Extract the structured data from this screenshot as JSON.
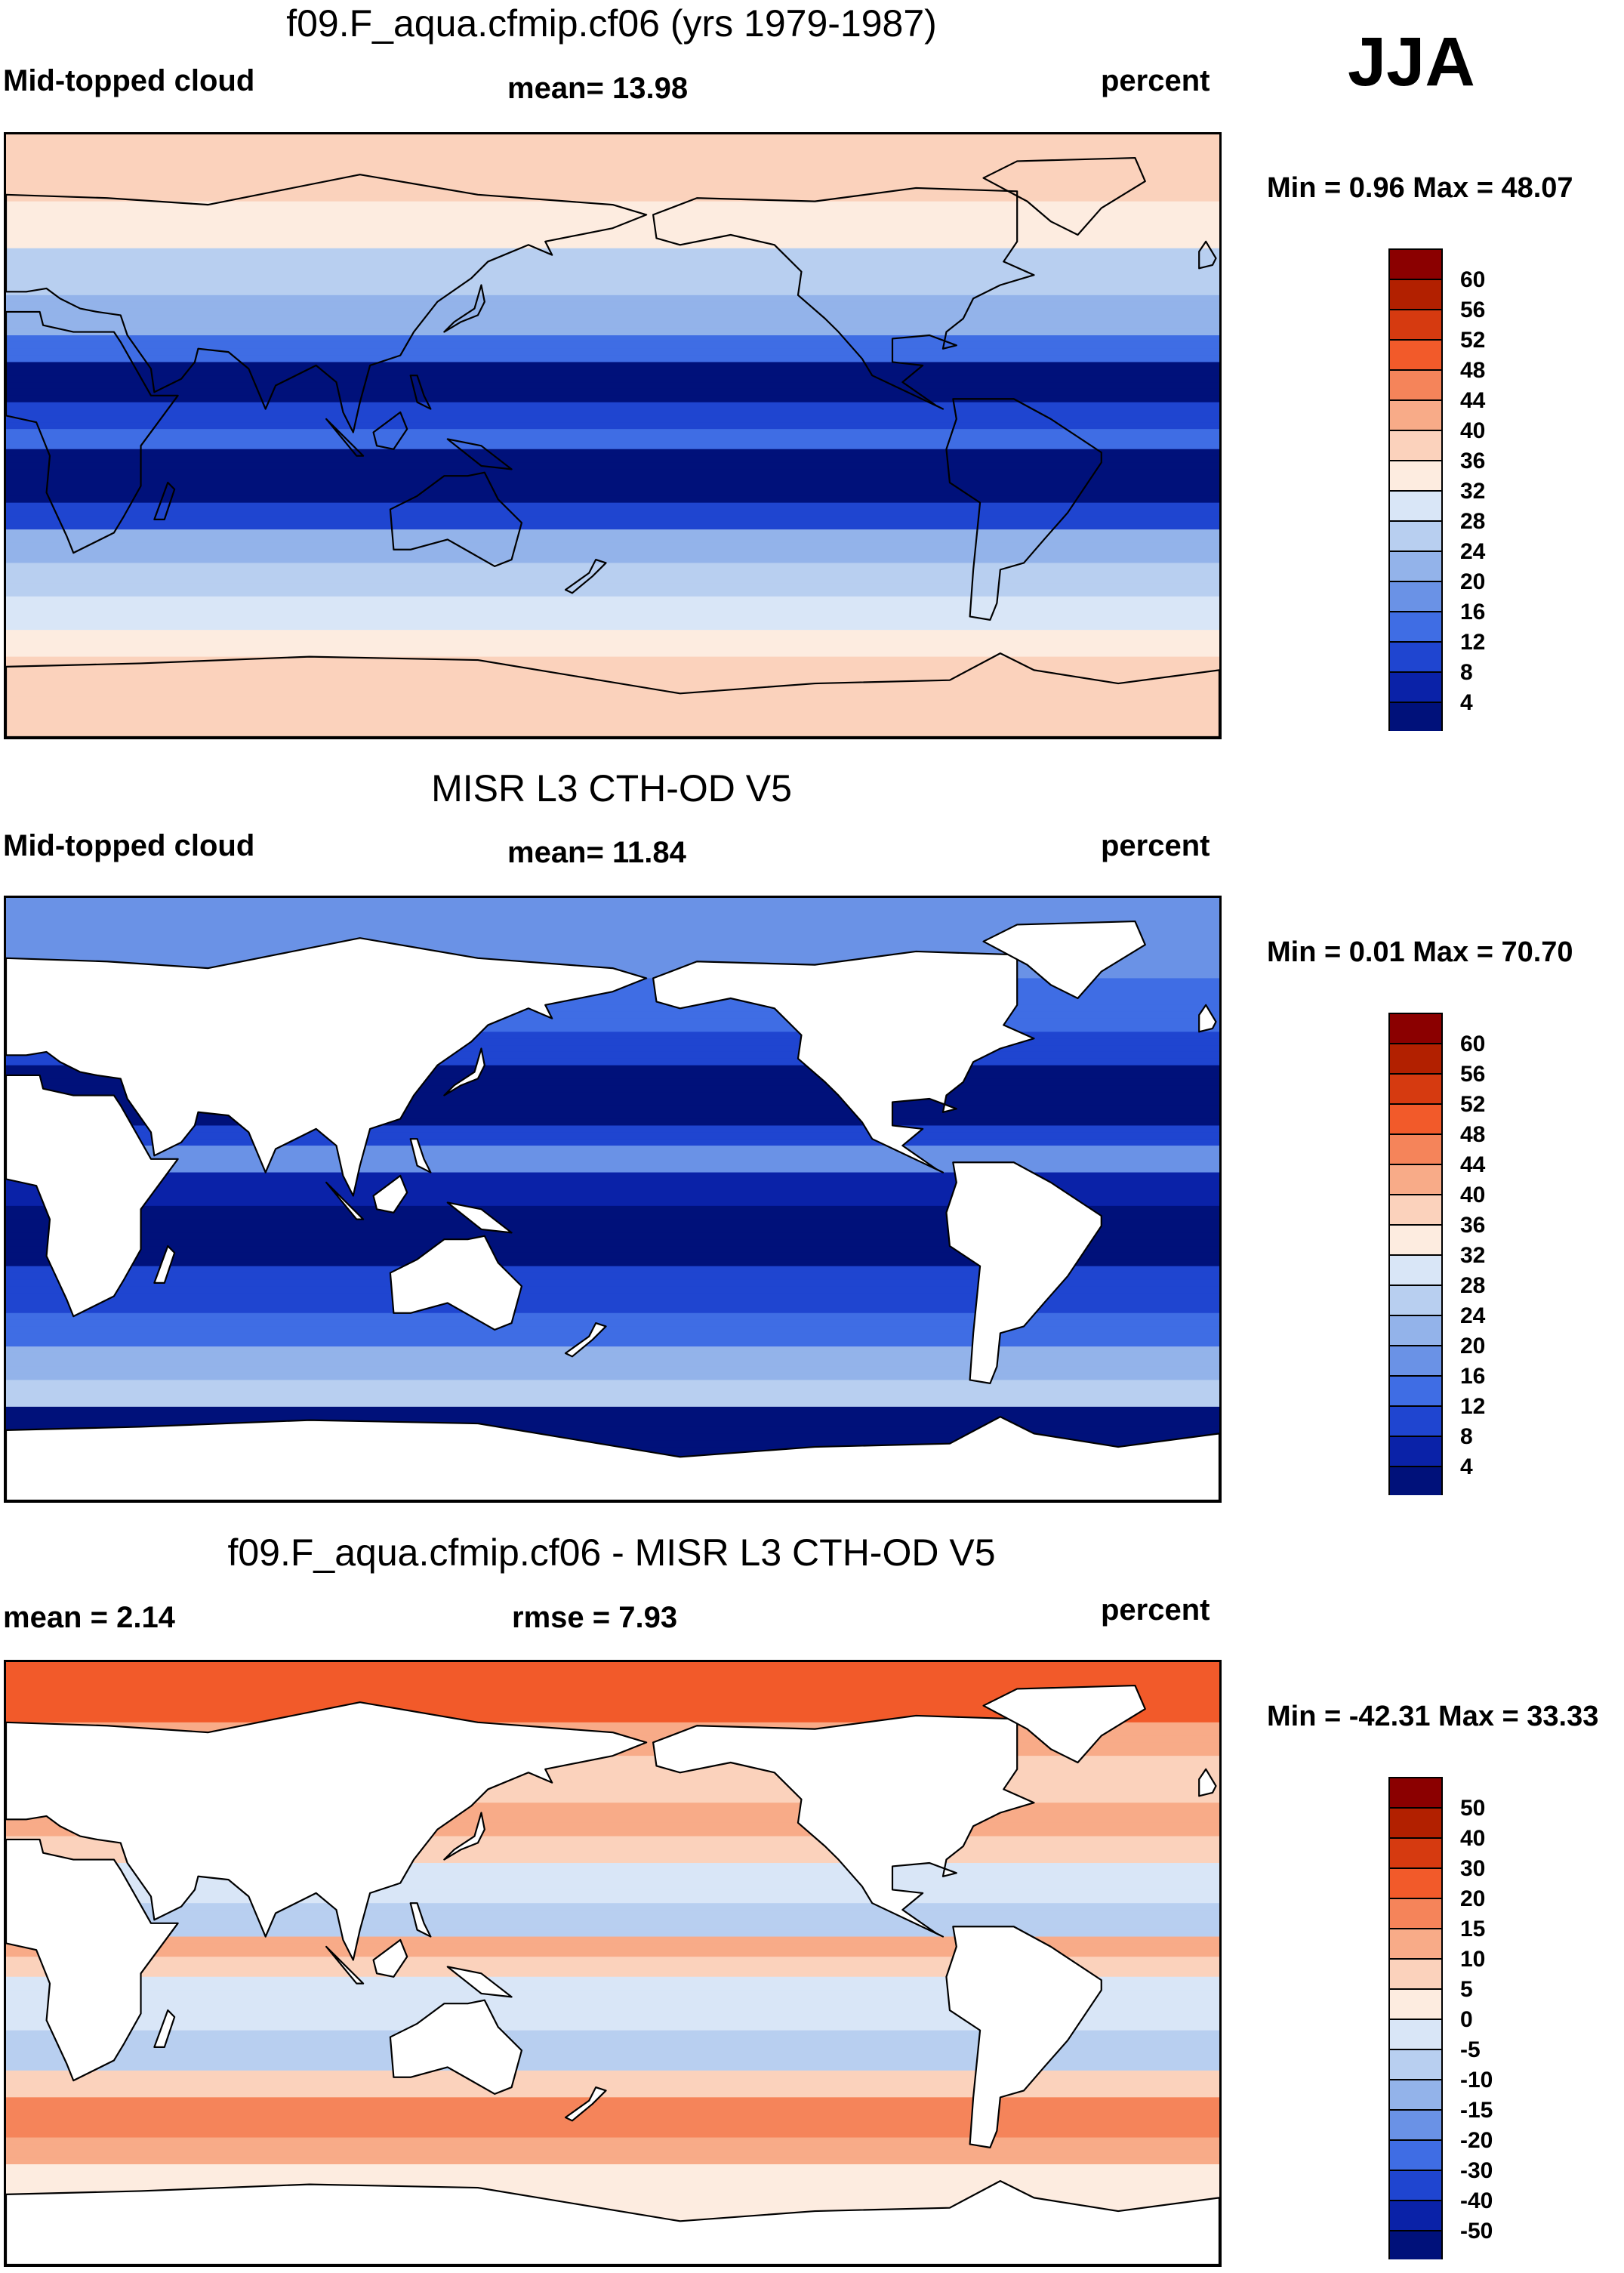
{
  "season": "JJA",
  "panels": [
    {
      "id": "model",
      "title": "f09.F_aqua.cfmip.cf06 (yrs 1979-1987)",
      "left_label": "Mid-topped cloud",
      "center_label": "mean=  13.98",
      "right_label": "percent",
      "minmax": "Min =   0.96 Max =  48.07",
      "ocean_only": false,
      "colorbar_ticks": [
        "60",
        "56",
        "52",
        "48",
        "44",
        "40",
        "36",
        "32",
        "28",
        "24",
        "20",
        "16",
        "12",
        "8",
        "4"
      ],
      "colors": [
        "#8b0000",
        "#b22000",
        "#d63a10",
        "#f25a2a",
        "#f5845a",
        "#f8ab88",
        "#fbd2bc",
        "#fdece0",
        "#d9e6f7",
        "#b8cff0",
        "#93b3ea",
        "#6a92e6",
        "#3f6de4",
        "#1f45d0",
        "#0a22a8",
        "#00117a"
      ]
    },
    {
      "id": "obs",
      "title": "MISR L3 CTH-OD V5",
      "left_label": "Mid-topped cloud",
      "center_label": "mean=  11.84",
      "right_label": "percent",
      "minmax": "Min =   0.01 Max =  70.70",
      "ocean_only": true,
      "colorbar_ticks": [
        "60",
        "56",
        "52",
        "48",
        "44",
        "40",
        "36",
        "32",
        "28",
        "24",
        "20",
        "16",
        "12",
        "8",
        "4"
      ],
      "colors": [
        "#8b0000",
        "#b22000",
        "#d63a10",
        "#f25a2a",
        "#f5845a",
        "#f8ab88",
        "#fbd2bc",
        "#fdece0",
        "#d9e6f7",
        "#b8cff0",
        "#93b3ea",
        "#6a92e6",
        "#3f6de4",
        "#1f45d0",
        "#0a22a8",
        "#00117a"
      ]
    },
    {
      "id": "diff",
      "title": "f09.F_aqua.cfmip.cf06 - MISR L3 CTH-OD V5",
      "left_label": "mean =   2.14",
      "center_label": "rmse =   7.93",
      "right_label": "percent",
      "minmax": "Min = -42.31 Max =  33.33",
      "ocean_only": true,
      "colorbar_ticks": [
        "50",
        "40",
        "30",
        "20",
        "15",
        "10",
        "5",
        "0",
        "-5",
        "-10",
        "-15",
        "-20",
        "-30",
        "-40",
        "-50"
      ],
      "colors": [
        "#8b0000",
        "#b22000",
        "#d63a10",
        "#f25a2a",
        "#f5845a",
        "#f8ab88",
        "#fbd2bc",
        "#fdece0",
        "#d9e6f7",
        "#b8cff0",
        "#93b3ea",
        "#6a92e6",
        "#3f6de4",
        "#1f45d0",
        "#0a22a8",
        "#00117a"
      ]
    }
  ]
}
